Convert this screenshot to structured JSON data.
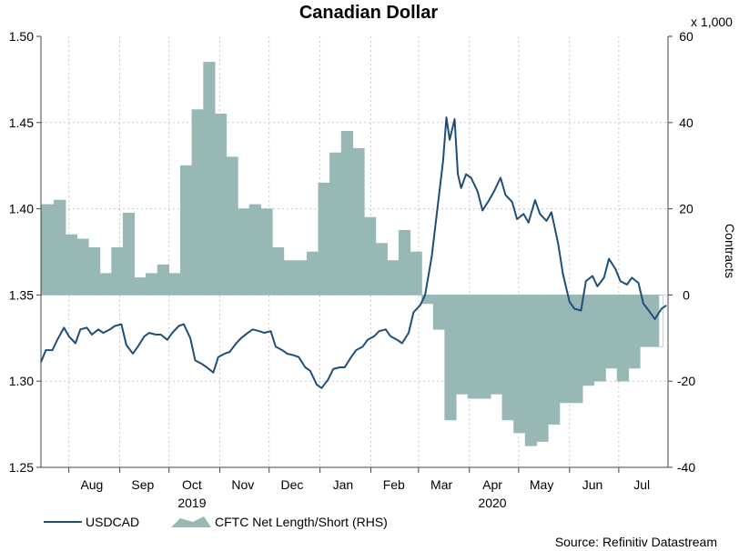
{
  "chart_data": {
    "type": "line",
    "title": "Canadian Dollar",
    "ylabel": "",
    "y2label": "Contracts",
    "y2_multiplier_label": "x 1,000",
    "source": "Source: Refinitiv Datastream",
    "ylim": [
      1.25,
      1.5
    ],
    "yticks": [
      "1.25",
      "1.30",
      "1.35",
      "1.40",
      "1.45",
      "1.50"
    ],
    "y2lim": [
      -40,
      60
    ],
    "y2ticks": [
      "-40",
      "-20",
      "0",
      "20",
      "40",
      "60"
    ],
    "xaxis": {
      "start": "2019-07-15",
      "end": "2020-07-31",
      "months": [
        {
          "label": "Aug",
          "date": "2019-08-15"
        },
        {
          "label": "Sep",
          "date": "2019-09-15"
        },
        {
          "label": "Oct",
          "date": "2019-10-15"
        },
        {
          "label": "Nov",
          "date": "2019-11-15"
        },
        {
          "label": "Dec",
          "date": "2019-12-15"
        },
        {
          "label": "Jan",
          "date": "2020-01-15"
        },
        {
          "label": "Feb",
          "date": "2020-02-15"
        },
        {
          "label": "Mar",
          "date": "2020-03-15"
        },
        {
          "label": "Apr",
          "date": "2020-04-15"
        },
        {
          "label": "May",
          "date": "2020-05-15"
        },
        {
          "label": "Jun",
          "date": "2020-06-15"
        },
        {
          "label": "Jul",
          "date": "2020-07-15"
        }
      ],
      "years": [
        {
          "label": "2019",
          "date": "2019-10-15"
        },
        {
          "label": "2020",
          "date": "2020-04-15"
        }
      ]
    },
    "series": [
      {
        "name": "USDCAD",
        "axis": "left",
        "color": "#1f4e79",
        "points": [
          [
            "2019-07-15",
            1.311
          ],
          [
            "2019-07-18",
            1.318
          ],
          [
            "2019-07-22",
            1.318
          ],
          [
            "2019-07-25",
            1.324
          ],
          [
            "2019-07-29",
            1.331
          ],
          [
            "2019-08-01",
            1.326
          ],
          [
            "2019-08-05",
            1.322
          ],
          [
            "2019-08-08",
            1.33
          ],
          [
            "2019-08-12",
            1.331
          ],
          [
            "2019-08-15",
            1.327
          ],
          [
            "2019-08-19",
            1.33
          ],
          [
            "2019-08-22",
            1.328
          ],
          [
            "2019-08-26",
            1.33
          ],
          [
            "2019-08-29",
            1.332
          ],
          [
            "2019-09-02",
            1.333
          ],
          [
            "2019-09-05",
            1.321
          ],
          [
            "2019-09-09",
            1.316
          ],
          [
            "2019-09-12",
            1.32
          ],
          [
            "2019-09-16",
            1.326
          ],
          [
            "2019-09-19",
            1.328
          ],
          [
            "2019-09-23",
            1.327
          ],
          [
            "2019-09-26",
            1.327
          ],
          [
            "2019-09-30",
            1.324
          ],
          [
            "2019-10-03",
            1.328
          ],
          [
            "2019-10-07",
            1.332
          ],
          [
            "2019-10-10",
            1.333
          ],
          [
            "2019-10-14",
            1.325
          ],
          [
            "2019-10-17",
            1.312
          ],
          [
            "2019-10-21",
            1.31
          ],
          [
            "2019-10-24",
            1.308
          ],
          [
            "2019-10-28",
            1.305
          ],
          [
            "2019-10-31",
            1.314
          ],
          [
            "2019-11-04",
            1.316
          ],
          [
            "2019-11-07",
            1.317
          ],
          [
            "2019-11-11",
            1.322
          ],
          [
            "2019-11-14",
            1.325
          ],
          [
            "2019-11-18",
            1.328
          ],
          [
            "2019-11-21",
            1.33
          ],
          [
            "2019-11-25",
            1.329
          ],
          [
            "2019-11-28",
            1.328
          ],
          [
            "2019-12-02",
            1.329
          ],
          [
            "2019-12-05",
            1.32
          ],
          [
            "2019-12-09",
            1.318
          ],
          [
            "2019-12-12",
            1.316
          ],
          [
            "2019-12-16",
            1.315
          ],
          [
            "2019-12-19",
            1.314
          ],
          [
            "2019-12-23",
            1.308
          ],
          [
            "2019-12-26",
            1.306
          ],
          [
            "2019-12-30",
            1.298
          ],
          [
            "2020-01-02",
            1.296
          ],
          [
            "2020-01-06",
            1.301
          ],
          [
            "2020-01-09",
            1.307
          ],
          [
            "2020-01-13",
            1.308
          ],
          [
            "2020-01-16",
            1.308
          ],
          [
            "2020-01-20",
            1.314
          ],
          [
            "2020-01-23",
            1.318
          ],
          [
            "2020-01-27",
            1.32
          ],
          [
            "2020-01-30",
            1.324
          ],
          [
            "2020-02-03",
            1.326
          ],
          [
            "2020-02-06",
            1.329
          ],
          [
            "2020-02-10",
            1.33
          ],
          [
            "2020-02-13",
            1.326
          ],
          [
            "2020-02-17",
            1.324
          ],
          [
            "2020-02-20",
            1.322
          ],
          [
            "2020-02-24",
            1.328
          ],
          [
            "2020-02-27",
            1.34
          ],
          [
            "2020-03-02",
            1.344
          ],
          [
            "2020-03-05",
            1.35
          ],
          [
            "2020-03-09",
            1.372
          ],
          [
            "2020-03-12",
            1.396
          ],
          [
            "2020-03-16",
            1.428
          ],
          [
            "2020-03-18",
            1.453
          ],
          [
            "2020-03-20",
            1.44
          ],
          [
            "2020-03-23",
            1.452
          ],
          [
            "2020-03-25",
            1.42
          ],
          [
            "2020-03-27",
            1.412
          ],
          [
            "2020-03-30",
            1.42
          ],
          [
            "2020-04-02",
            1.418
          ],
          [
            "2020-04-06",
            1.41
          ],
          [
            "2020-04-09",
            1.399
          ],
          [
            "2020-04-13",
            1.405
          ],
          [
            "2020-04-16",
            1.41
          ],
          [
            "2020-04-20",
            1.418
          ],
          [
            "2020-04-23",
            1.408
          ],
          [
            "2020-04-27",
            1.404
          ],
          [
            "2020-04-30",
            1.394
          ],
          [
            "2020-05-04",
            1.397
          ],
          [
            "2020-05-07",
            1.392
          ],
          [
            "2020-05-11",
            1.405
          ],
          [
            "2020-05-14",
            1.397
          ],
          [
            "2020-05-18",
            1.393
          ],
          [
            "2020-05-21",
            1.398
          ],
          [
            "2020-05-25",
            1.38
          ],
          [
            "2020-05-28",
            1.362
          ],
          [
            "2020-06-01",
            1.346
          ],
          [
            "2020-06-04",
            1.342
          ],
          [
            "2020-06-08",
            1.341
          ],
          [
            "2020-06-11",
            1.358
          ],
          [
            "2020-06-15",
            1.361
          ],
          [
            "2020-06-18",
            1.355
          ],
          [
            "2020-06-22",
            1.36
          ],
          [
            "2020-06-25",
            1.371
          ],
          [
            "2020-06-29",
            1.365
          ],
          [
            "2020-07-02",
            1.358
          ],
          [
            "2020-07-06",
            1.356
          ],
          [
            "2020-07-09",
            1.36
          ],
          [
            "2020-07-13",
            1.357
          ],
          [
            "2020-07-16",
            1.345
          ],
          [
            "2020-07-20",
            1.34
          ],
          [
            "2020-07-23",
            1.336
          ],
          [
            "2020-07-27",
            1.342
          ],
          [
            "2020-07-30",
            1.344
          ]
        ]
      },
      {
        "name": "CFTC Net Length/Short (RHS)",
        "axis": "right",
        "type": "area",
        "color": "#98b8b5",
        "points": [
          [
            "2019-07-15",
            21
          ],
          [
            "2019-07-23",
            22
          ],
          [
            "2019-07-30",
            14
          ],
          [
            "2019-08-06",
            13
          ],
          [
            "2019-08-13",
            11
          ],
          [
            "2019-08-20",
            5
          ],
          [
            "2019-08-27",
            11
          ],
          [
            "2019-09-03",
            19
          ],
          [
            "2019-09-10",
            4
          ],
          [
            "2019-09-17",
            5
          ],
          [
            "2019-09-24",
            7
          ],
          [
            "2019-10-01",
            5
          ],
          [
            "2019-10-08",
            30
          ],
          [
            "2019-10-15",
            43
          ],
          [
            "2019-10-22",
            54
          ],
          [
            "2019-10-29",
            42
          ],
          [
            "2019-11-05",
            32
          ],
          [
            "2019-11-12",
            20
          ],
          [
            "2019-11-19",
            21
          ],
          [
            "2019-11-26",
            20
          ],
          [
            "2019-12-03",
            11
          ],
          [
            "2019-12-10",
            8
          ],
          [
            "2019-12-17",
            8
          ],
          [
            "2019-12-24",
            10
          ],
          [
            "2019-12-31",
            26
          ],
          [
            "2020-01-07",
            33
          ],
          [
            "2020-01-14",
            38
          ],
          [
            "2020-01-21",
            34
          ],
          [
            "2020-01-28",
            18
          ],
          [
            "2020-02-04",
            12
          ],
          [
            "2020-02-11",
            8
          ],
          [
            "2020-02-18",
            15
          ],
          [
            "2020-02-25",
            10
          ],
          [
            "2020-03-03",
            -2
          ],
          [
            "2020-03-10",
            -8
          ],
          [
            "2020-03-17",
            -29
          ],
          [
            "2020-03-24",
            -23
          ],
          [
            "2020-03-31",
            -24
          ],
          [
            "2020-04-07",
            -24
          ],
          [
            "2020-04-14",
            -23
          ],
          [
            "2020-04-21",
            -29
          ],
          [
            "2020-04-28",
            -32
          ],
          [
            "2020-05-05",
            -35
          ],
          [
            "2020-05-12",
            -34
          ],
          [
            "2020-05-19",
            -30
          ],
          [
            "2020-05-26",
            -25
          ],
          [
            "2020-06-02",
            -25
          ],
          [
            "2020-06-09",
            -21
          ],
          [
            "2020-06-16",
            -20
          ],
          [
            "2020-06-23",
            -17
          ],
          [
            "2020-06-30",
            -20
          ],
          [
            "2020-07-07",
            -17
          ],
          [
            "2020-07-14",
            -12
          ],
          [
            "2020-07-21",
            -12
          ],
          [
            "2020-07-28",
            -12
          ]
        ]
      }
    ]
  }
}
